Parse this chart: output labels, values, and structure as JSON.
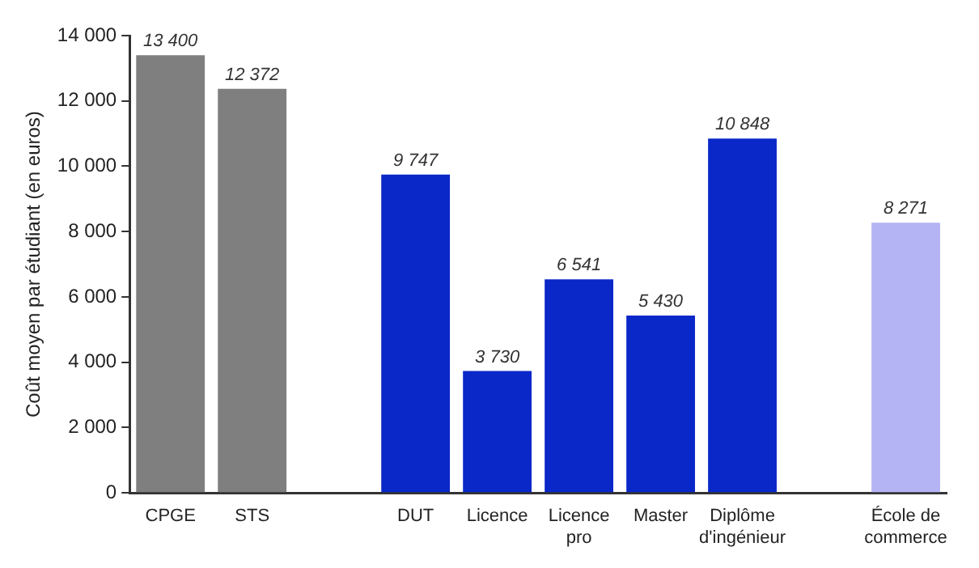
{
  "chart_data": {
    "type": "bar",
    "ylabel": "Coût moyen par étudiant (en euros)",
    "categories": [
      "CPGE",
      "STS",
      null,
      "DUT",
      "Licence",
      "Licence\npro",
      "Master",
      "Diplôme\nd'ingénieur",
      null,
      "École de\ncommerce"
    ],
    "values": [
      13400,
      12372,
      null,
      9747,
      3730,
      6541,
      5430,
      10848,
      null,
      8271
    ],
    "colors": [
      "#7f7f7f",
      "#7f7f7f",
      "#7f7f7f",
      "#0a28c8",
      "#0a28c8",
      "#0a28c8",
      "#0a28c8",
      "#0a28c8",
      "#0a28c8",
      "#b4b4f5"
    ],
    "value_labels": [
      "13 400",
      "12 372",
      null,
      "9 747",
      "3 730",
      "6 541",
      "5 430",
      "10 848",
      null,
      "8 271"
    ],
    "ylim": [
      0,
      14000
    ],
    "yticks": [
      0,
      {
        "value": 2000,
        "label": "2 000"
      },
      {
        "value": 4000,
        "label": "4 000"
      },
      {
        "value": 6000,
        "label": "6 000"
      },
      {
        "value": 8000,
        "label": "8 000"
      },
      {
        "value": 10000,
        "label": "10 000"
      },
      {
        "value": 12000,
        "label": "12 000"
      },
      {
        "value": 14000,
        "label": "14 000"
      }
    ],
    "grid": false,
    "legend": false
  }
}
